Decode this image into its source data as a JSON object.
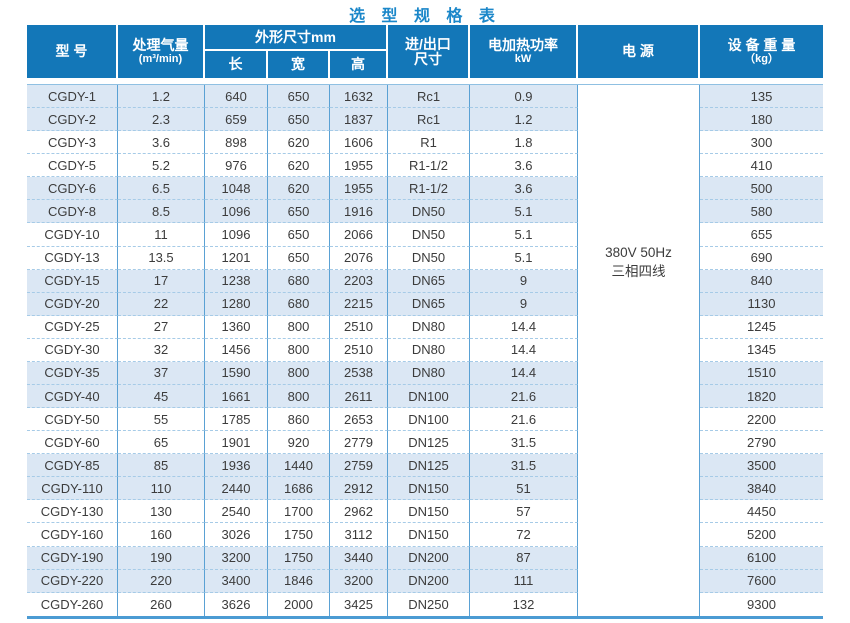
{
  "title": "选 型 规 格 表",
  "header": {
    "model": "型 号",
    "airflow_line1": "处理气量",
    "airflow_line2": "(m³/min)",
    "dimensions": "外形尺寸mm",
    "length": "长",
    "width": "宽",
    "height": "高",
    "inlet_line1": "进/出口",
    "inlet_line2": "尺寸",
    "heating_line1": "电加热功率",
    "heating_line2": "kW",
    "power": "电  源",
    "weight_line1": "设 备 重 量",
    "weight_line2": "（kg）"
  },
  "power_supply": {
    "line1": "380V 50Hz",
    "line2": "三相四线"
  },
  "colors": {
    "header_bg": "#1377b8",
    "title_text": "#1b87c9",
    "shaded_row": "#dbe7f4",
    "column_line": "#5aa1d4",
    "row_dash": "#a6cbe7",
    "bottom_line": "#4b9bd3",
    "body_text": "#3c3c3c"
  },
  "rows": [
    {
      "model": "CGDY-1",
      "airflow": "1.2",
      "length": "640",
      "width": "650",
      "height": "1632",
      "inlet": "Rc1",
      "heating": "0.9",
      "weight": "135",
      "shaded": true
    },
    {
      "model": "CGDY-2",
      "airflow": "2.3",
      "length": "659",
      "width": "650",
      "height": "1837",
      "inlet": "Rc1",
      "heating": "1.2",
      "weight": "180",
      "shaded": true
    },
    {
      "model": "CGDY-3",
      "airflow": "3.6",
      "length": "898",
      "width": "620",
      "height": "1606",
      "inlet": "R1",
      "heating": "1.8",
      "weight": "300",
      "shaded": false
    },
    {
      "model": "CGDY-5",
      "airflow": "5.2",
      "length": "976",
      "width": "620",
      "height": "1955",
      "inlet": "R1-1/2",
      "heating": "3.6",
      "weight": "410",
      "shaded": false
    },
    {
      "model": "CGDY-6",
      "airflow": "6.5",
      "length": "1048",
      "width": "620",
      "height": "1955",
      "inlet": "R1-1/2",
      "heating": "3.6",
      "weight": "500",
      "shaded": true
    },
    {
      "model": "CGDY-8",
      "airflow": "8.5",
      "length": "1096",
      "width": "650",
      "height": "1916",
      "inlet": "DN50",
      "heating": "5.1",
      "weight": "580",
      "shaded": true
    },
    {
      "model": "CGDY-10",
      "airflow": "11",
      "length": "1096",
      "width": "650",
      "height": "2066",
      "inlet": "DN50",
      "heating": "5.1",
      "weight": "655",
      "shaded": false
    },
    {
      "model": "CGDY-13",
      "airflow": "13.5",
      "length": "1201",
      "width": "650",
      "height": "2076",
      "inlet": "DN50",
      "heating": "5.1",
      "weight": "690",
      "shaded": false
    },
    {
      "model": "CGDY-15",
      "airflow": "17",
      "length": "1238",
      "width": "680",
      "height": "2203",
      "inlet": "DN65",
      "heating": "9",
      "weight": "840",
      "shaded": true
    },
    {
      "model": "CGDY-20",
      "airflow": "22",
      "length": "1280",
      "width": "680",
      "height": "2215",
      "inlet": "DN65",
      "heating": "9",
      "weight": "1130",
      "shaded": true
    },
    {
      "model": "CGDY-25",
      "airflow": "27",
      "length": "1360",
      "width": "800",
      "height": "2510",
      "inlet": "DN80",
      "heating": "14.4",
      "weight": "1245",
      "shaded": false
    },
    {
      "model": "CGDY-30",
      "airflow": "32",
      "length": "1456",
      "width": "800",
      "height": "2510",
      "inlet": "DN80",
      "heating": "14.4",
      "weight": "1345",
      "shaded": false
    },
    {
      "model": "CGDY-35",
      "airflow": "37",
      "length": "1590",
      "width": "800",
      "height": "2538",
      "inlet": "DN80",
      "heating": "14.4",
      "weight": "1510",
      "shaded": true
    },
    {
      "model": "CGDY-40",
      "airflow": "45",
      "length": "1661",
      "width": "800",
      "height": "2611",
      "inlet": "DN100",
      "heating": "21.6",
      "weight": "1820",
      "shaded": true
    },
    {
      "model": "CGDY-50",
      "airflow": "55",
      "length": "1785",
      "width": "860",
      "height": "2653",
      "inlet": "DN100",
      "heating": "21.6",
      "weight": "2200",
      "shaded": false
    },
    {
      "model": "CGDY-60",
      "airflow": "65",
      "length": "1901",
      "width": "920",
      "height": "2779",
      "inlet": "DN125",
      "heating": "31.5",
      "weight": "2790",
      "shaded": false
    },
    {
      "model": "CGDY-85",
      "airflow": "85",
      "length": "1936",
      "width": "1440",
      "height": "2759",
      "inlet": "DN125",
      "heating": "31.5",
      "weight": "3500",
      "shaded": true
    },
    {
      "model": "CGDY-110",
      "airflow": "110",
      "length": "2440",
      "width": "1686",
      "height": "2912",
      "inlet": "DN150",
      "heating": "51",
      "weight": "3840",
      "shaded": true
    },
    {
      "model": "CGDY-130",
      "airflow": "130",
      "length": "2540",
      "width": "1700",
      "height": "2962",
      "inlet": "DN150",
      "heating": "57",
      "weight": "4450",
      "shaded": false
    },
    {
      "model": "CGDY-160",
      "airflow": "160",
      "length": "3026",
      "width": "1750",
      "height": "3112",
      "inlet": "DN150",
      "heating": "72",
      "weight": "5200",
      "shaded": false
    },
    {
      "model": "CGDY-190",
      "airflow": "190",
      "length": "3200",
      "width": "1750",
      "height": "3440",
      "inlet": "DN200",
      "heating": "87",
      "weight": "6100",
      "shaded": true
    },
    {
      "model": "CGDY-220",
      "airflow": "220",
      "length": "3400",
      "width": "1846",
      "height": "3200",
      "inlet": "DN200",
      "heating": "111",
      "weight": "7600",
      "shaded": true
    },
    {
      "model": "CGDY-260",
      "airflow": "260",
      "length": "3626",
      "width": "2000",
      "height": "3425",
      "inlet": "DN250",
      "heating": "132",
      "weight": "9300",
      "shaded": false
    }
  ]
}
